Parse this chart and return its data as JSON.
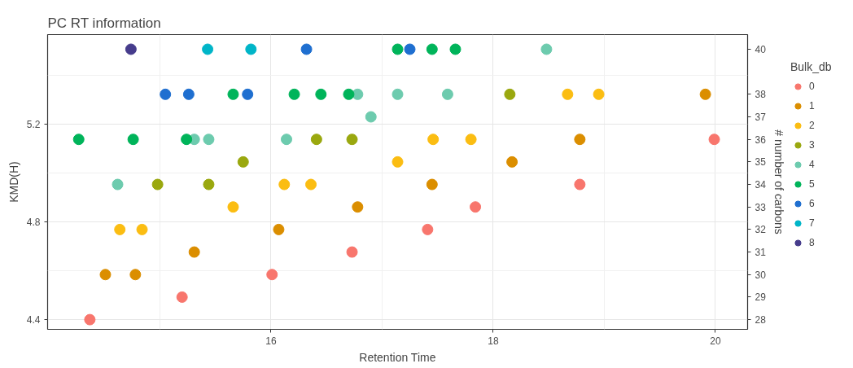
{
  "chart_data": {
    "type": "scatter",
    "title": "PC RT information",
    "xlabel": "Retention Time",
    "ylabel": "KMD(H)",
    "y2label": "# number of carbons",
    "legend_title": "Bulk_db",
    "xlim": [
      13.99,
      20.29
    ],
    "xticks": [
      {
        "value": 15,
        "label": null
      },
      16,
      {
        "value": 17,
        "label": null
      },
      18,
      {
        "value": 19,
        "label": null
      },
      20
    ],
    "ylim": [
      4.36,
      5.567
    ],
    "yticks": [
      4.4,
      {
        "value": 4.6,
        "label": null
      },
      4.8,
      {
        "value": 5.0,
        "label": null
      },
      5.2,
      {
        "value": 5.4,
        "label": null
      }
    ],
    "y2lim": [
      27.57,
      40.65
    ],
    "y2ticks": [
      28,
      29,
      30,
      31,
      32,
      33,
      34,
      35,
      36,
      37,
      38,
      40
    ],
    "grid": true,
    "legend": "right",
    "marker": "circle",
    "series": [
      {
        "name": "0",
        "color": "#f8766d",
        "axis": "y2",
        "x": [
          19.99,
          17.84,
          17.41,
          18.78,
          16.73,
          16.01,
          15.2,
          14.37
        ],
        "values": [
          36,
          33,
          32,
          34,
          31,
          30,
          29,
          28
        ]
      },
      {
        "name": "1",
        "color": "#db8e00",
        "axis": "y2",
        "x": [
          19.91,
          18.78,
          18.17,
          17.45,
          16.78,
          16.07,
          15.31,
          14.51,
          14.78
        ],
        "values": [
          38,
          36,
          35,
          34,
          33,
          32,
          31,
          30,
          30
        ]
      },
      {
        "name": "2",
        "color": "#fbbd12",
        "axis": "y2",
        "x": [
          18.67,
          18.95,
          17.46,
          17.8,
          17.14,
          16.12,
          16.36,
          15.66,
          14.64,
          14.84
        ],
        "values": [
          38,
          38,
          36,
          36,
          35,
          34,
          34,
          33,
          32,
          32
        ]
      },
      {
        "name": "3",
        "color": "#9aa80f",
        "axis": "y2",
        "x": [
          18.15,
          16.41,
          16.73,
          15.75,
          14.98,
          15.44
        ],
        "values": [
          38,
          36,
          36,
          35,
          34,
          34
        ]
      },
      {
        "name": "4",
        "color": "#6dcbae",
        "axis": "y2",
        "x": [
          18.48,
          16.78,
          17.14,
          17.59,
          16.9,
          15.31,
          15.44,
          16.14,
          14.62
        ],
        "values": [
          40,
          38,
          38,
          38,
          37,
          36,
          36,
          36,
          34
        ]
      },
      {
        "name": "5",
        "color": "#00b45a",
        "axis": "y2",
        "x": [
          17.14,
          17.45,
          17.66,
          15.66,
          16.21,
          16.45,
          16.7,
          14.27,
          14.76,
          15.24
        ],
        "values": [
          40,
          40,
          40,
          38,
          38,
          38,
          38,
          36,
          36,
          36
        ]
      },
      {
        "name": "6",
        "color": "#1f6fd0",
        "axis": "y2",
        "x": [
          16.32,
          17.25,
          15.05,
          15.26,
          15.79
        ],
        "values": [
          40,
          40,
          38,
          38,
          38
        ]
      },
      {
        "name": "7",
        "color": "#00b5c8",
        "axis": "y2",
        "x": [
          15.43,
          15.82
        ],
        "values": [
          40,
          40
        ]
      },
      {
        "name": "8",
        "color": "#463c8c",
        "axis": "y2",
        "x": [
          14.74
        ],
        "values": [
          40
        ]
      }
    ]
  }
}
